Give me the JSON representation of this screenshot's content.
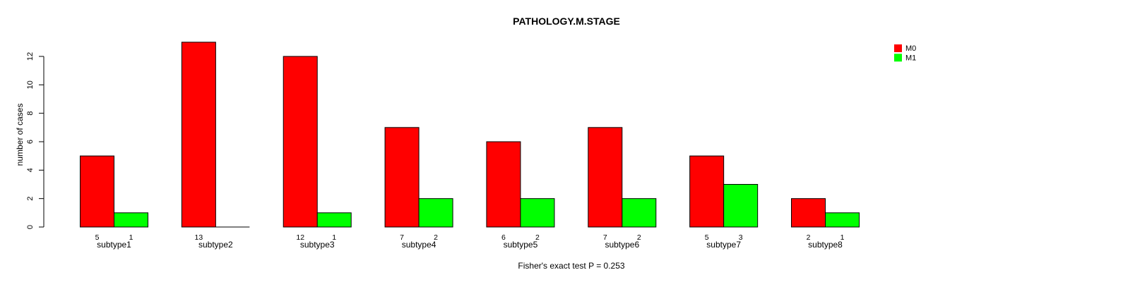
{
  "colors": {
    "m0": "#FF0000",
    "m1": "#00FF00",
    "axis": "#000000",
    "bar_border": "#000000",
    "background": "#FFFFFF",
    "text": "#000000"
  },
  "chart_data": {
    "type": "bar",
    "title": "PATHOLOGY.M.STAGE",
    "xlabel": "",
    "ylabel": "number of cases",
    "annotation": "Fisher's exact test P = 0.253",
    "categories": [
      "subtype1",
      "subtype2",
      "subtype3",
      "subtype4",
      "subtype5",
      "subtype6",
      "subtype7",
      "subtype8"
    ],
    "series": [
      {
        "name": "M0",
        "color": "#FF0000",
        "values": [
          5,
          13,
          12,
          7,
          6,
          7,
          5,
          2
        ]
      },
      {
        "name": "M1",
        "color": "#00FF00",
        "values": [
          1,
          0,
          1,
          2,
          2,
          2,
          3,
          1
        ]
      }
    ],
    "value_labels": {
      "shown": true,
      "hide_zeros": true,
      "M0": [
        "5",
        "13",
        "12",
        "7",
        "6",
        "7",
        "5",
        "2"
      ],
      "M1": [
        "1",
        "",
        "1",
        "2",
        "2",
        "2",
        "3",
        "1"
      ]
    },
    "yticks": [
      0,
      2,
      4,
      6,
      8,
      10,
      12
    ],
    "ylim": [
      0,
      13
    ],
    "grid": false,
    "legend": {
      "position": "top-right",
      "entries": [
        {
          "label": "M0",
          "color": "#FF0000"
        },
        {
          "label": "M1",
          "color": "#00FF00"
        }
      ]
    }
  }
}
